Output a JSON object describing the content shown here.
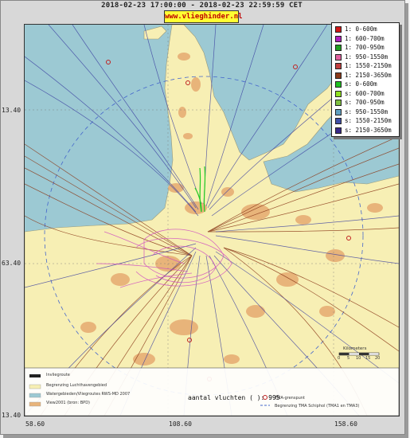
{
  "header": {
    "time_range": "2018-02-23 17:00:00 - 2018-02-23 22:59:59 CET",
    "brand": "www.vlieghinder.nl"
  },
  "axes": {
    "y_ticks": [
      "13.40",
      "63.40",
      "13.40"
    ],
    "x_ticks": [
      "58.60",
      "108.60",
      "158.60"
    ]
  },
  "legend": {
    "items": [
      {
        "label": "1: 0-600m",
        "color": "#d01818"
      },
      {
        "label": "1: 600-700m",
        "color": "#b020c0"
      },
      {
        "label": "1: 700-950m",
        "color": "#20a020"
      },
      {
        "label": "1: 950-1550m",
        "color": "#e060a0"
      },
      {
        "label": "1: 1550-2150m",
        "color": "#c04040"
      },
      {
        "label": "1: 2150-3650m",
        "color": "#8b3a1a"
      },
      {
        "label": "s: 0-600m",
        "color": "#20c020"
      },
      {
        "label": "s: 600-700m",
        "color": "#90e020"
      },
      {
        "label": "s: 700-950m",
        "color": "#80c040"
      },
      {
        "label": "s: 950-1550m",
        "color": "#60a0c0"
      },
      {
        "label": "s: 1550-2150m",
        "color": "#4050a8"
      },
      {
        "label": "s: 2150-3650m",
        "color": "#3a2a8a"
      }
    ]
  },
  "footer": {
    "flights_count": "aantal vluchten ( ): 995",
    "scale_label": "Kilometers",
    "scale_values": [
      "0",
      "5",
      "10",
      "15",
      "20"
    ],
    "bottom_legend_left": [
      "Invliegroute",
      "Begrenzing Luchthavengebied",
      "Watergebieden/Vliegroutes RWS-MD 2007",
      "View2001 (bron: BPD)"
    ],
    "bottom_legend_right": [
      "TMA-grenspunt",
      "Begrenzing TMA Schiphol (TMA1 en TMA3)"
    ]
  },
  "colors": {
    "sea": "#9cc9d3",
    "land": "#f7efb4",
    "urban": "#e8b47a",
    "arrivals": "#3a3ea0",
    "departures": "#8b3a1a",
    "low": "#d050c0",
    "green": "#22cc22"
  }
}
